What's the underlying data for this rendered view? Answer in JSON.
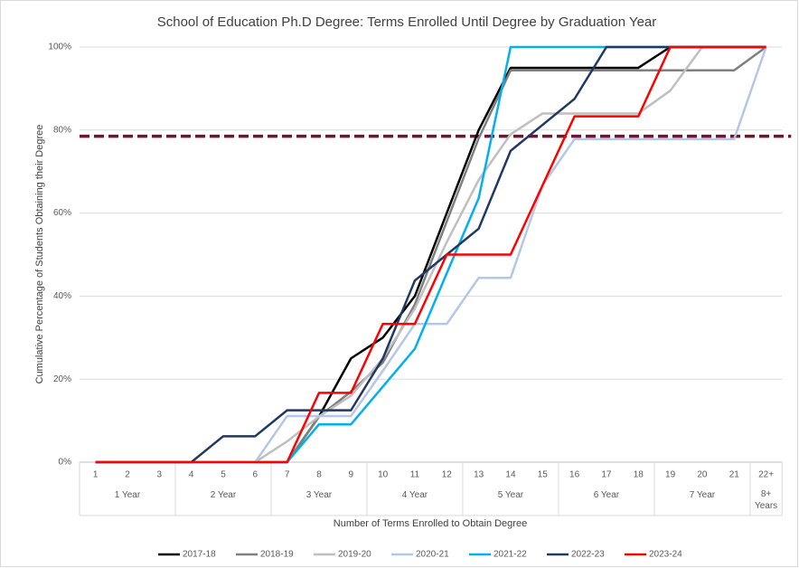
{
  "chart_data": {
    "type": "line",
    "title": "School of Education Ph.D Degree: Terms Enrolled Until Degree by Graduation Year",
    "x_label": "Number of Terms Enrolled to Obtain Degree",
    "y_label": "Cumulative Percentage of Students Obtaining their Degree",
    "category_groups": [
      {
        "name": "1 Year",
        "categories": [
          "1",
          "2",
          "3"
        ]
      },
      {
        "name": "2 Year",
        "categories": [
          "4",
          "5",
          "6"
        ]
      },
      {
        "name": "3 Year",
        "categories": [
          "7",
          "8",
          "9"
        ]
      },
      {
        "name": "4 Year",
        "categories": [
          "10",
          "11",
          "12"
        ]
      },
      {
        "name": "5 Year",
        "categories": [
          "13",
          "14",
          "15"
        ]
      },
      {
        "name": "6 Year",
        "categories": [
          "16",
          "17",
          "18"
        ]
      },
      {
        "name": "7 Year",
        "categories": [
          "19",
          "20",
          "21"
        ]
      },
      {
        "name": "8+ Years",
        "categories": [
          "22+"
        ]
      }
    ],
    "ylim": [
      0,
      100
    ],
    "yticks": [
      {
        "value": 0,
        "label": "0%"
      },
      {
        "value": 20,
        "label": "20%"
      },
      {
        "value": 40,
        "label": "40%"
      },
      {
        "value": 60,
        "label": "60%"
      },
      {
        "value": 80,
        "label": "80%"
      },
      {
        "value": 100,
        "label": "100%"
      }
    ],
    "grid": true,
    "legend": "bottom",
    "reference_line": {
      "value": 78.5,
      "color": "#7b1030"
    },
    "series": [
      {
        "name": "2017-18",
        "color": "#000000",
        "values": [
          0,
          0,
          0,
          0,
          0,
          0,
          0,
          11,
          25,
          30,
          40,
          60,
          80,
          95,
          95,
          95,
          95,
          95,
          100,
          100,
          100,
          100
        ]
      },
      {
        "name": "2018-19",
        "color": "#7f7f7f",
        "values": [
          0,
          0,
          0,
          0,
          0,
          0,
          0,
          11,
          17,
          24,
          38,
          58,
          78,
          94.4,
          94.4,
          94.4,
          94.4,
          94.4,
          94.4,
          94.4,
          94.4,
          100
        ]
      },
      {
        "name": "2019-20",
        "color": "#bfbfbf",
        "values": [
          0,
          0,
          0,
          0,
          0,
          0,
          5,
          11,
          16,
          25,
          37,
          53,
          68,
          79,
          84,
          84,
          84,
          84,
          89.5,
          100,
          100,
          100
        ]
      },
      {
        "name": "2020-21",
        "color": "#b4c7e7",
        "values": [
          0,
          0,
          0,
          0,
          0,
          0,
          11.1,
          11.1,
          11.1,
          22,
          33.3,
          33.3,
          44.4,
          44.4,
          66.7,
          77.8,
          77.8,
          77.8,
          77.8,
          77.8,
          77.8,
          100
        ]
      },
      {
        "name": "2021-22",
        "color": "#00b0f0",
        "values": [
          0,
          0,
          0,
          0,
          0,
          0,
          0,
          9.1,
          9.1,
          18.2,
          27.3,
          45.5,
          63.6,
          100,
          100,
          100,
          100,
          100,
          100,
          100,
          100,
          100
        ]
      },
      {
        "name": "2022-23",
        "color": "#203864",
        "values": [
          0,
          0,
          0,
          0,
          6.25,
          6.25,
          12.5,
          12.5,
          12.5,
          25,
          43.75,
          50,
          56.25,
          75,
          81.25,
          87.5,
          100,
          100,
          100,
          100,
          100,
          100
        ]
      },
      {
        "name": "2023-24",
        "color": "#ff0000",
        "values": [
          0,
          0,
          0,
          0,
          0,
          0,
          0,
          16.7,
          16.7,
          33.3,
          33.3,
          50,
          50,
          50,
          66.7,
          83.3,
          83.3,
          83.3,
          100,
          100,
          100,
          100
        ]
      }
    ]
  }
}
